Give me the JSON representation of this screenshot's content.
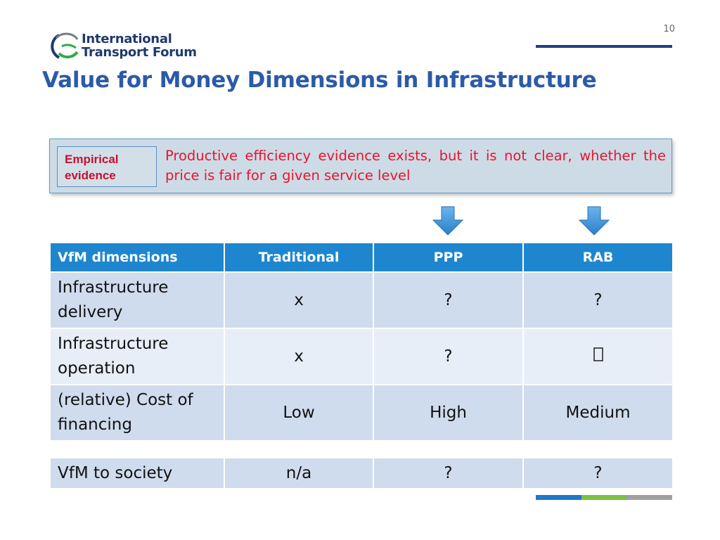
{
  "slide": {
    "page_number": "10",
    "title": "Value for Money Dimensions in Infrastructure"
  },
  "logo": {
    "line1": "International",
    "line2": "Transport Forum"
  },
  "evidence": {
    "label_line1": "Empirical",
    "label_line2": "evidence",
    "text": "Productive efficiency evidence exists, but it is not clear, whether the price is fair for a given service level"
  },
  "table": {
    "headers": [
      "VfM dimensions",
      "Traditional",
      "PPP",
      "RAB"
    ],
    "rows": [
      {
        "dimension_line1": "Infrastructure",
        "dimension_line2": "delivery",
        "traditional": "x",
        "ppp": "?",
        "rab": "?"
      },
      {
        "dimension_line1": "Infrastructure",
        "dimension_line2": "operation",
        "traditional": "x",
        "ppp": "?",
        "rab": ""
      },
      {
        "dimension_line1": "(relative) Cost of",
        "dimension_line2": "financing",
        "traditional": "Low",
        "ppp": "High",
        "rab": "Medium"
      }
    ],
    "society_row": {
      "dimension": "VfM to society",
      "traditional": "n/a",
      "ppp": "?",
      "rab": "?"
    }
  },
  "colors": {
    "title": "#2b5aa8",
    "header_bg": "#1e86cf",
    "evidence_text": "#e8142d",
    "arrow": "#3a8fd8",
    "bar_blue": "#1f78c8",
    "bar_green": "#7ac143",
    "bar_gray": "#a0a0a0"
  },
  "icons": {
    "arrow": "down-arrow-icon",
    "missing_glyph": "missing-glyph-icon"
  }
}
